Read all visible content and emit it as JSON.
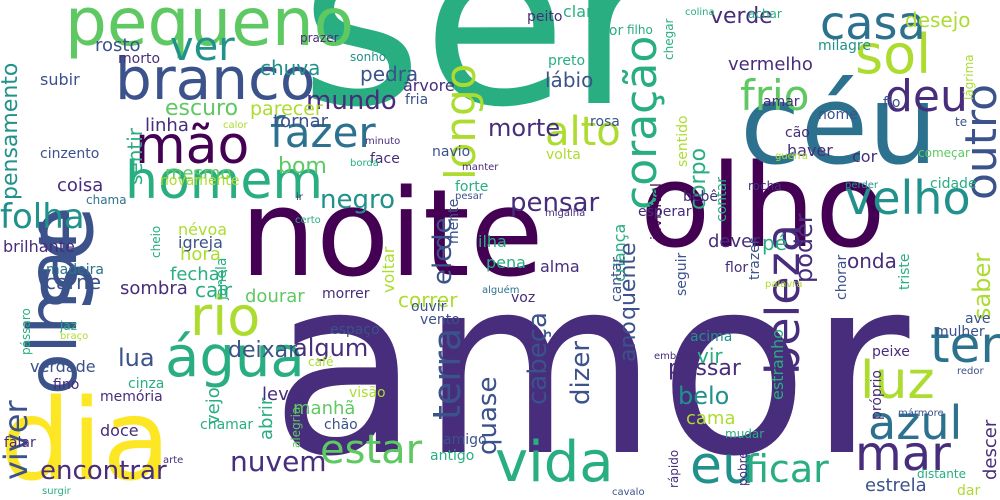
{
  "palette": {
    "dark_purple": "#440154",
    "indigo": "#472d7b",
    "blue": "#3b528b",
    "steel": "#2c728e",
    "teal": "#21918c",
    "green_teal": "#28ae80",
    "green": "#5ec962",
    "lime": "#addc30",
    "yellow": "#fde725"
  },
  "words": [
    {
      "text": "ser",
      "color": "green_teal"
    },
    {
      "text": "amor",
      "color": "indigo"
    },
    {
      "text": "noite",
      "color": "dark_purple"
    },
    {
      "text": "olho",
      "color": "dark_purple"
    },
    {
      "text": "céu",
      "color": "steel"
    },
    {
      "text": "dia",
      "color": "yellow"
    },
    {
      "text": "olhar",
      "color": "blue"
    },
    {
      "text": "se",
      "color": "blue"
    },
    {
      "text": "pequeno",
      "color": "green"
    },
    {
      "text": "branco",
      "color": "blue"
    },
    {
      "text": "homem",
      "color": "green_teal"
    },
    {
      "text": "mão",
      "color": "dark_purple"
    },
    {
      "text": "ver",
      "color": "teal"
    },
    {
      "text": "fazer",
      "color": "steel"
    },
    {
      "text": "rio",
      "color": "lime"
    },
    {
      "text": "água",
      "color": "green_teal"
    },
    {
      "text": "sol",
      "color": "lime"
    },
    {
      "text": "casa",
      "color": "steel"
    },
    {
      "text": "deu",
      "color": "indigo"
    },
    {
      "text": "outro",
      "color": "blue"
    },
    {
      "text": "longo",
      "color": "lime"
    },
    {
      "text": "coração",
      "color": "green_teal"
    },
    {
      "text": "frio",
      "color": "green"
    },
    {
      "text": "alto",
      "color": "lime"
    },
    {
      "text": "velho",
      "color": "teal"
    },
    {
      "text": "terra",
      "color": "blue"
    },
    {
      "text": "ter",
      "color": "steel"
    },
    {
      "text": "luz",
      "color": "lime"
    },
    {
      "text": "beleza",
      "color": "indigo"
    },
    {
      "text": "azul",
      "color": "steel"
    },
    {
      "text": "mar",
      "color": "indigo"
    },
    {
      "text": "vida",
      "color": "green_teal"
    },
    {
      "text": "estar",
      "color": "green"
    },
    {
      "text": "eu",
      "color": "teal"
    },
    {
      "text": "ficar",
      "color": "green_teal"
    },
    {
      "text": "encontrar",
      "color": "indigo"
    },
    {
      "text": "nuvem",
      "color": "indigo"
    },
    {
      "text": "viver",
      "color": "blue"
    },
    {
      "text": "folha",
      "color": "teal"
    },
    {
      "text": "pensamento",
      "color": "teal"
    },
    {
      "text": "mundo",
      "color": "indigo"
    },
    {
      "text": "morte",
      "color": "indigo"
    },
    {
      "text": "verde",
      "color": "indigo"
    },
    {
      "text": "desejo",
      "color": "lime"
    },
    {
      "text": "rosto",
      "color": "blue"
    },
    {
      "text": "chuva",
      "color": "teal"
    },
    {
      "text": "escuro",
      "color": "green"
    },
    {
      "text": "parecer",
      "color": "lime"
    },
    {
      "text": "pensar",
      "color": "indigo"
    },
    {
      "text": "negro",
      "color": "teal"
    },
    {
      "text": "de",
      "color": "blue"
    },
    {
      "text": "ele",
      "color": "blue"
    },
    {
      "text": "cabeça",
      "color": "blue"
    },
    {
      "text": "dizer",
      "color": "blue"
    },
    {
      "text": "quase",
      "color": "blue"
    },
    {
      "text": "pedra",
      "color": "blue"
    },
    {
      "text": "lábio",
      "color": "blue"
    },
    {
      "text": "vermelho",
      "color": "indigo"
    },
    {
      "text": "sentir",
      "color": "green_teal"
    },
    {
      "text": "linha",
      "color": "indigo"
    },
    {
      "text": "bom",
      "color": "green"
    },
    {
      "text": "mesmo",
      "color": "green"
    },
    {
      "text": "tornar",
      "color": "blue"
    },
    {
      "text": "algum",
      "color": "indigo"
    },
    {
      "text": "deixar",
      "color": "blue"
    },
    {
      "text": "lua",
      "color": "blue"
    },
    {
      "text": "belo",
      "color": "teal"
    },
    {
      "text": "passar",
      "color": "indigo"
    },
    {
      "text": "corpo",
      "color": "green_teal"
    },
    {
      "text": "poder",
      "color": "indigo"
    },
    {
      "text": "quente",
      "color": "blue"
    },
    {
      "text": "ano",
      "color": "blue"
    },
    {
      "text": "saber",
      "color": "lime"
    },
    {
      "text": "coisa",
      "color": "indigo"
    },
    {
      "text": "carne",
      "color": "blue"
    },
    {
      "text": "cair",
      "color": "green_teal"
    },
    {
      "text": "dourar",
      "color": "green"
    },
    {
      "text": "correr",
      "color": "lime"
    },
    {
      "text": "sombra",
      "color": "indigo"
    },
    {
      "text": "fechar",
      "color": "green_teal"
    },
    {
      "text": "hora",
      "color": "lime"
    },
    {
      "text": "vir",
      "color": "green_teal"
    },
    {
      "text": "cama",
      "color": "lime"
    },
    {
      "text": "manhã",
      "color": "green"
    },
    {
      "text": "vejo",
      "color": "green_teal"
    },
    {
      "text": "abrir",
      "color": "green_teal"
    },
    {
      "text": "levar",
      "color": "indigo"
    },
    {
      "text": "memória",
      "color": "indigo"
    },
    {
      "text": "verdade",
      "color": "blue"
    },
    {
      "text": "doce",
      "color": "indigo"
    },
    {
      "text": "chamar",
      "color": "green_teal"
    },
    {
      "text": "chão",
      "color": "blue"
    },
    {
      "text": "visão",
      "color": "lime"
    },
    {
      "text": "pé",
      "color": "green_teal"
    },
    {
      "text": "onda",
      "color": "indigo"
    },
    {
      "text": "dever",
      "color": "indigo"
    },
    {
      "text": "cor",
      "color": "indigo"
    },
    {
      "text": "haver",
      "color": "indigo"
    },
    {
      "text": "cão",
      "color": "indigo"
    },
    {
      "text": "nome",
      "color": "blue"
    },
    {
      "text": "amar",
      "color": "indigo"
    },
    {
      "text": "milagre",
      "color": "teal"
    },
    {
      "text": "fio",
      "color": "blue"
    },
    {
      "text": "estrela",
      "color": "blue"
    },
    {
      "text": "descer",
      "color": "indigo"
    },
    {
      "text": "estranho",
      "color": "green_teal"
    },
    {
      "text": "criança",
      "color": "green_teal"
    },
    {
      "text": "alma",
      "color": "indigo"
    },
    {
      "text": "ilha",
      "color": "green_teal"
    },
    {
      "text": "pena",
      "color": "green_teal"
    },
    {
      "text": "voltar",
      "color": "lime"
    },
    {
      "text": "igreja",
      "color": "blue"
    },
    {
      "text": "névoa",
      "color": "lime"
    },
    {
      "text": "madeira",
      "color": "steel"
    },
    {
      "text": "brilhante",
      "color": "indigo"
    },
    {
      "text": "novamente",
      "color": "lime"
    },
    {
      "text": "chama",
      "color": "steel"
    },
    {
      "text": "face",
      "color": "indigo"
    },
    {
      "text": "navio",
      "color": "blue"
    },
    {
      "text": "rosa",
      "color": "blue"
    },
    {
      "text": "volta",
      "color": "lime"
    },
    {
      "text": "sentido",
      "color": "lime"
    },
    {
      "text": "forte",
      "color": "green_teal"
    },
    {
      "text": "mente",
      "color": "blue"
    },
    {
      "text": "invisível",
      "color": "dark_purple"
    },
    {
      "text": "bebê",
      "color": "indigo"
    },
    {
      "text": "esperar",
      "color": "indigo"
    },
    {
      "text": "contar",
      "color": "green_teal"
    },
    {
      "text": "flor",
      "color": "indigo"
    },
    {
      "text": "seguir",
      "color": "blue"
    },
    {
      "text": "cantar",
      "color": "blue"
    },
    {
      "text": "trazer",
      "color": "blue"
    },
    {
      "text": "chorar",
      "color": "blue"
    },
    {
      "text": "triste",
      "color": "green_teal"
    },
    {
      "text": "ave",
      "color": "blue"
    },
    {
      "text": "mulher",
      "color": "blue"
    },
    {
      "text": "peixe",
      "color": "indigo"
    },
    {
      "text": "cidade",
      "color": "green_teal"
    },
    {
      "text": "começar",
      "color": "green"
    },
    {
      "text": "guerra",
      "color": "lime"
    },
    {
      "text": "rocha",
      "color": "indigo"
    },
    {
      "text": "perder",
      "color": "teal"
    },
    {
      "text": "te",
      "color": "blue"
    },
    {
      "text": "lágrima",
      "color": "lime"
    },
    {
      "text": "colina",
      "color": "green_teal"
    },
    {
      "text": "achar",
      "color": "green_teal"
    },
    {
      "text": "claro",
      "color": "green_teal"
    },
    {
      "text": "dor",
      "color": "green_teal"
    },
    {
      "text": "chegar",
      "color": "green_teal"
    },
    {
      "text": "peito",
      "color": "indigo"
    },
    {
      "text": "filho",
      "color": "green_teal"
    },
    {
      "text": "prazer",
      "color": "indigo"
    },
    {
      "text": "morto",
      "color": "indigo"
    },
    {
      "text": "sonho",
      "color": "teal"
    },
    {
      "text": "preto",
      "color": "green_teal"
    },
    {
      "text": "árvore",
      "color": "indigo"
    },
    {
      "text": "fria",
      "color": "blue"
    },
    {
      "text": "subir",
      "color": "blue"
    },
    {
      "text": "cinzento",
      "color": "blue"
    },
    {
      "text": "calor",
      "color": "lime"
    },
    {
      "text": "minuto",
      "color": "indigo"
    },
    {
      "text": "borda",
      "color": "green_teal"
    },
    {
      "text": "manter",
      "color": "indigo"
    },
    {
      "text": "pesar",
      "color": "blue"
    },
    {
      "text": "migalha",
      "color": "indigo"
    },
    {
      "text": "ir",
      "color": "indigo"
    },
    {
      "text": "certo",
      "color": "green_teal"
    },
    {
      "text": "cheio",
      "color": "green_teal"
    },
    {
      "text": "janela",
      "color": "green_teal"
    },
    {
      "text": "morrer",
      "color": "indigo"
    },
    {
      "text": "espaço",
      "color": "blue"
    },
    {
      "text": "vento",
      "color": "blue"
    },
    {
      "text": "ouvir",
      "color": "blue"
    },
    {
      "text": "alguém",
      "color": "steel"
    },
    {
      "text": "voz",
      "color": "indigo"
    },
    {
      "text": "amigo",
      "color": "blue"
    },
    {
      "text": "antigo",
      "color": "green_teal"
    },
    {
      "text": "café",
      "color": "lime"
    },
    {
      "text": "alegria",
      "color": "green"
    },
    {
      "text": "jaz",
      "color": "green_teal"
    },
    {
      "text": "braço",
      "color": "lime"
    },
    {
      "text": "pássaro",
      "color": "green_teal"
    },
    {
      "text": "fino",
      "color": "indigo"
    },
    {
      "text": "cinza",
      "color": "green_teal"
    },
    {
      "text": "falar",
      "color": "indigo"
    },
    {
      "text": "surgir",
      "color": "green_teal"
    },
    {
      "text": "arte",
      "color": "indigo"
    },
    {
      "text": "cavalo",
      "color": "blue"
    },
    {
      "text": "rápido",
      "color": "indigo"
    },
    {
      "text": "pobre",
      "color": "indigo"
    },
    {
      "text": "mudar",
      "color": "green_teal"
    },
    {
      "text": "embaixo",
      "color": "indigo"
    },
    {
      "text": "acima",
      "color": "teal"
    },
    {
      "text": "próprio",
      "color": "indigo"
    },
    {
      "text": "redor",
      "color": "blue"
    },
    {
      "text": "mármore",
      "color": "blue"
    },
    {
      "text": "distante",
      "color": "green_teal"
    },
    {
      "text": "dar",
      "color": "lime"
    },
    {
      "text": "palavra",
      "color": "lime"
    }
  ]
}
